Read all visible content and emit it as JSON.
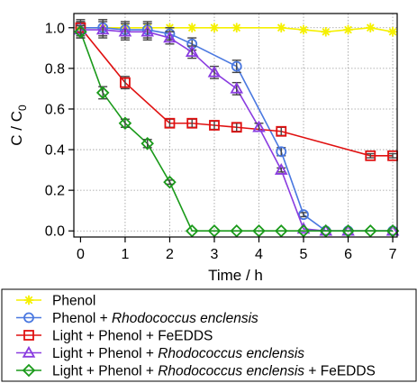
{
  "chart_data": {
    "type": "line",
    "title": "",
    "xlabel": "Time / h",
    "ylabel_main": "C / C",
    "ylabel_sub": "0",
    "xlim": [
      -0.15,
      7.1
    ],
    "ylim": [
      -0.03,
      1.07
    ],
    "xticks": [
      0,
      1,
      2,
      3,
      4,
      5,
      6,
      7
    ],
    "yticks": [
      0.0,
      0.2,
      0.4,
      0.6,
      0.8,
      1.0
    ],
    "xtick_labels": [
      "0",
      "1",
      "2",
      "3",
      "4",
      "5",
      "6",
      "7"
    ],
    "ytick_labels": [
      "0.0",
      "0.2",
      "0.4",
      "0.6",
      "0.8",
      "1.0"
    ],
    "grid": true,
    "legend_position": "below",
    "series": [
      {
        "name": "Phenol",
        "color": "#f5f000",
        "marker": "star",
        "x": [
          0,
          0.5,
          1,
          1.5,
          2,
          2.5,
          3,
          3.5,
          4.5,
          5,
          5.5,
          6,
          6.5,
          7
        ],
        "y": [
          1.0,
          1.0,
          1.0,
          1.0,
          1.0,
          1.0,
          1.0,
          1.0,
          1.0,
          0.99,
          0.98,
          0.99,
          1.0,
          0.98
        ],
        "err": [
          0,
          0,
          0,
          0,
          0,
          0,
          0,
          0,
          0,
          0,
          0,
          0,
          0,
          0
        ]
      },
      {
        "name": "Phenol + Rhodococcus enclensis",
        "color": "#4a78e0",
        "marker": "circle",
        "x": [
          0,
          0.5,
          1,
          1.5,
          2,
          2.5,
          3.5,
          4.5,
          5,
          5.5,
          6,
          7
        ],
        "y": [
          1.0,
          1.0,
          0.99,
          0.99,
          0.97,
          0.92,
          0.81,
          0.39,
          0.08,
          0.0,
          0.0,
          0.0
        ],
        "err": [
          0.04,
          0.04,
          0.04,
          0.04,
          0.03,
          0.03,
          0.03,
          0.02,
          0.01,
          0,
          0,
          0
        ]
      },
      {
        "name": "Light + Phenol + FeEDDS",
        "color": "#e01010",
        "marker": "square",
        "x": [
          0,
          1,
          2,
          2.5,
          3,
          3.5,
          4.5,
          6.5,
          7
        ],
        "y": [
          1.0,
          0.73,
          0.53,
          0.53,
          0.52,
          0.51,
          0.49,
          0.37,
          0.37
        ],
        "err": [
          0.03,
          0.03,
          0.02,
          0.02,
          0.02,
          0.02,
          0.02,
          0.01,
          0.01
        ]
      },
      {
        "name": "Light + Phenol + Rhodococcus enclensis",
        "color": "#8a3ce0",
        "marker": "triangle",
        "x": [
          0,
          0.5,
          1,
          1.5,
          2,
          2.5,
          3,
          3.5,
          4,
          4.5,
          5,
          5.5,
          6,
          7
        ],
        "y": [
          0.99,
          0.99,
          0.98,
          0.98,
          0.95,
          0.88,
          0.78,
          0.7,
          0.51,
          0.3,
          0.01,
          0.0,
          0.0,
          0.0
        ],
        "err": [
          0.04,
          0.04,
          0.04,
          0.04,
          0.03,
          0.03,
          0.03,
          0.03,
          0.02,
          0.01,
          0,
          0,
          0,
          0
        ]
      },
      {
        "name": "Light + Phenol + Rhodococcus enclensis + FeEDDS",
        "color": "#1a9a1a",
        "marker": "diamond",
        "x": [
          0,
          0.5,
          1,
          1.5,
          2,
          2.5,
          3,
          3.5,
          4,
          4.5,
          5,
          5.5,
          6,
          6.5,
          7
        ],
        "y": [
          0.98,
          0.68,
          0.53,
          0.43,
          0.24,
          0.0,
          0.0,
          0.0,
          0.0,
          0.0,
          0.0,
          0.0,
          0.0,
          0.0,
          0.0
        ],
        "err": [
          0.03,
          0.03,
          0.02,
          0.02,
          0.01,
          0,
          0,
          0,
          0,
          0,
          0,
          0,
          0,
          0,
          0
        ]
      }
    ]
  },
  "legend": {
    "items": [
      {
        "parts": [
          {
            "text": "Phenol",
            "italic": false
          }
        ]
      },
      {
        "parts": [
          {
            "text": "Phenol + ",
            "italic": false
          },
          {
            "text": "Rhodococcus enclensis",
            "italic": true
          }
        ]
      },
      {
        "parts": [
          {
            "text": "Light + Phenol + FeEDDS",
            "italic": false
          }
        ]
      },
      {
        "parts": [
          {
            "text": "Light + Phenol + ",
            "italic": false
          },
          {
            "text": "Rhodococcus enclensis",
            "italic": true
          }
        ]
      },
      {
        "parts": [
          {
            "text": "Light + Phenol + ",
            "italic": false
          },
          {
            "text": "Rhodococcus enclensis",
            "italic": true
          },
          {
            "text": " + FeEDDS",
            "italic": false
          }
        ]
      }
    ]
  }
}
